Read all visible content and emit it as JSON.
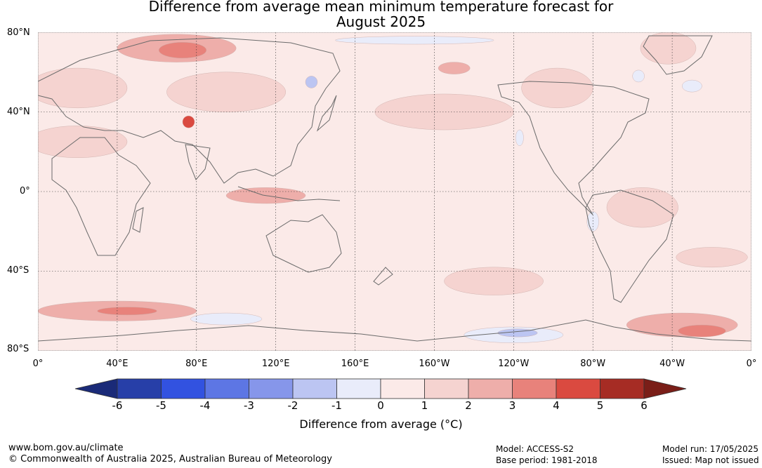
{
  "title": {
    "line1": "Difference from average mean minimum temperature forecast for",
    "line2": "August 2025"
  },
  "map": {
    "lat_labels": [
      "80°N",
      "40°N",
      "0°",
      "40°S",
      "80°S"
    ],
    "lat_values": [
      80,
      40,
      0,
      -40,
      -80
    ],
    "lon_labels": [
      "0°",
      "40°E",
      "80°E",
      "120°E",
      "160°E",
      "160°W",
      "120°W",
      "80°W",
      "40°W",
      "0°"
    ],
    "lon_values": [
      0,
      40,
      80,
      120,
      160,
      200,
      240,
      280,
      320,
      360
    ],
    "background_color": "#fbeae8",
    "coastline_color": "#6b6b6b",
    "anomaly_regions": [
      {
        "name": "Siberia",
        "lon": 70,
        "lat": 72,
        "rx": 30,
        "ry": 7,
        "value": 2
      },
      {
        "name": "West Siberia core",
        "lon": 73,
        "lat": 71,
        "rx": 12,
        "ry": 4,
        "value": 3.5
      },
      {
        "name": "Tibet",
        "lon": 76,
        "lat": 35,
        "rx": 3,
        "ry": 3,
        "value": 4
      },
      {
        "name": "Europe",
        "lon": 20,
        "lat": 52,
        "rx": 25,
        "ry": 10,
        "value": 1.5
      },
      {
        "name": "North Africa",
        "lon": 20,
        "lat": 25,
        "rx": 25,
        "ry": 8,
        "value": 1.5
      },
      {
        "name": "Asia",
        "lon": 95,
        "lat": 50,
        "rx": 30,
        "ry": 10,
        "value": 1.5
      },
      {
        "name": "North Pacific",
        "lon": 205,
        "lat": 40,
        "rx": 35,
        "ry": 9,
        "value": 1.5
      },
      {
        "name": "Maritime Continent",
        "lon": 115,
        "lat": -2,
        "rx": 20,
        "ry": 4,
        "value": 2
      },
      {
        "name": "Alaska",
        "lon": 210,
        "lat": 62,
        "rx": 8,
        "ry": 3,
        "value": 2
      },
      {
        "name": "Canada",
        "lon": 262,
        "lat": 52,
        "rx": 18,
        "ry": 10,
        "value": 1.5
      },
      {
        "name": "Greenland",
        "lon": 318,
        "lat": 72,
        "rx": 14,
        "ry": 8,
        "value": 1.5
      },
      {
        "name": "South America",
        "lon": 305,
        "lat": -8,
        "rx": 18,
        "ry": 10,
        "value": 1.5
      },
      {
        "name": "South Atlantic",
        "lon": 340,
        "lat": -33,
        "rx": 18,
        "ry": 5,
        "value": 1.5
      },
      {
        "name": "Southern Ocean Indian",
        "lon": 40,
        "lat": -60,
        "rx": 40,
        "ry": 5,
        "value": 2
      },
      {
        "name": "Southern Ocean core",
        "lon": 45,
        "lat": -60,
        "rx": 15,
        "ry": 2,
        "value": 3
      },
      {
        "name": "Southern Atlantic-Weddell",
        "lon": 325,
        "lat": -67,
        "rx": 28,
        "ry": 6,
        "value": 2.5
      },
      {
        "name": "Weddell core",
        "lon": 335,
        "lat": -70,
        "rx": 12,
        "ry": 3,
        "value": 3.5
      },
      {
        "name": "South Pacific",
        "lon": 230,
        "lat": -45,
        "rx": 25,
        "ry": 7,
        "value": 1.5
      },
      {
        "name": "Ross Sea cold",
        "lon": 240,
        "lat": -72,
        "rx": 25,
        "ry": 4,
        "value": -1
      },
      {
        "name": "Ross Sea cold core",
        "lon": 242,
        "lat": -71,
        "rx": 10,
        "ry": 2,
        "value": -2
      },
      {
        "name": "East Antarctica cold",
        "lon": 95,
        "lat": -64,
        "rx": 18,
        "ry": 3,
        "value": -1
      },
      {
        "name": "Hudson Bay cold",
        "lon": 303,
        "lat": 58,
        "rx": 3,
        "ry": 3,
        "value": -1
      },
      {
        "name": "North Atlantic cold",
        "lon": 330,
        "lat": 53,
        "rx": 5,
        "ry": 3,
        "value": -1
      },
      {
        "name": "Arctic cold",
        "lon": 190,
        "lat": 76,
        "rx": 40,
        "ry": 2,
        "value": -1
      },
      {
        "name": "Sea of Okhotsk cold",
        "lon": 138,
        "lat": 55,
        "rx": 3,
        "ry": 3,
        "value": -2
      },
      {
        "name": "Peru coast cold",
        "lon": 280,
        "lat": -15,
        "rx": 3,
        "ry": 5,
        "value": -1
      },
      {
        "name": "Baja cold",
        "lon": 243,
        "lat": 27,
        "rx": 2,
        "ry": 4,
        "value": -1
      }
    ]
  },
  "colorbar": {
    "levels": [
      -6,
      -5,
      -4,
      -3,
      -2,
      -1,
      0,
      1,
      2,
      3,
      4,
      5,
      6
    ],
    "tick_labels": [
      "-6",
      "-5",
      "-4",
      "-3",
      "-2",
      "-1",
      "0",
      "1",
      "2",
      "3",
      "4",
      "5",
      "6"
    ],
    "colors": [
      "#273fa8",
      "#3252e0",
      "#5d76e4",
      "#8696ea",
      "#bcc5f2",
      "#e9ecfa",
      "#fbeae8",
      "#f5d3d0",
      "#eeaeaa",
      "#e8827b",
      "#da4a40",
      "#a62c24"
    ],
    "under_color": "#1a2a78",
    "over_color": "#7a1e18",
    "label": "Difference from average (°C)"
  },
  "footer": {
    "url": "www.bom.gov.au/climate",
    "copyright": "© Commonwealth of Australia 2025, Australian Bureau of Meteorology",
    "model": "Model: ACCESS-S2",
    "base_period": "Base period: 1981-2018",
    "model_run": "Model run: 17/05/2025",
    "issued": "Issued: Map not issued"
  }
}
